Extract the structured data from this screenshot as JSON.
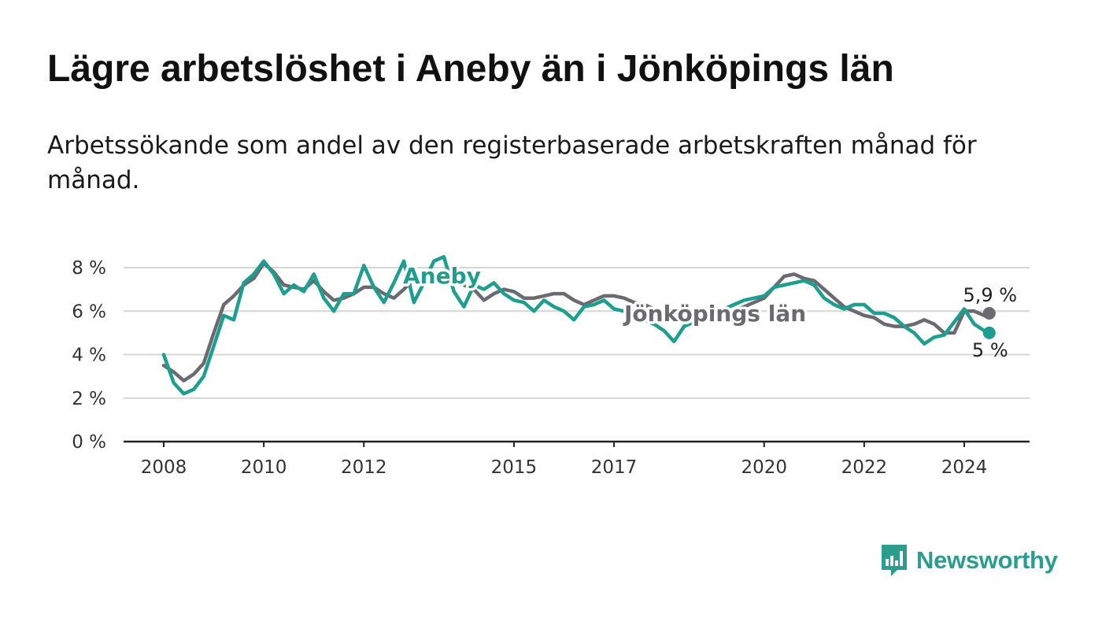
{
  "title": "Lägre arbetslöshet i Aneby än i Jönköpings län",
  "subtitle": "Arbetssökande som andel av den registerbaserade arbetskraften månad för månad.",
  "brand": {
    "name": "Newsworthy",
    "color": "#2a9d8f"
  },
  "chart_data": {
    "type": "line",
    "title": "Lägre arbetslöshet i Aneby än i Jönköpings län",
    "xlabel": "",
    "ylabel": "",
    "xlim": [
      2007.6,
      2025.3
    ],
    "ylim": [
      0,
      8
    ],
    "ytick_values": [
      0,
      2,
      4,
      6,
      8
    ],
    "ytick_labels": [
      "0 %",
      "2 %",
      "4 %",
      "6 %",
      "8 %"
    ],
    "xtick_values": [
      2008,
      2010,
      2012,
      2015,
      2017,
      2020,
      2022,
      2024
    ],
    "xtick_labels": [
      "2008",
      "2010",
      "2012",
      "2015",
      "2017",
      "2020",
      "2022",
      "2024"
    ],
    "grid": true,
    "series": [
      {
        "name": "Jönköpings län",
        "label": "Jönköpings län",
        "color": "#6b6a70",
        "end_label": "5,9 %",
        "end_value": 5.9,
        "x": [
          2008.0,
          2008.2,
          2008.4,
          2008.6,
          2008.8,
          2009.0,
          2009.2,
          2009.4,
          2009.6,
          2009.8,
          2010.0,
          2010.2,
          2010.4,
          2010.6,
          2010.8,
          2011.0,
          2011.2,
          2011.4,
          2011.6,
          2011.8,
          2012.0,
          2012.2,
          2012.4,
          2012.6,
          2012.8,
          2013.0,
          2013.2,
          2013.4,
          2013.6,
          2013.8,
          2014.0,
          2014.2,
          2014.4,
          2014.6,
          2014.8,
          2015.0,
          2015.2,
          2015.4,
          2015.6,
          2015.8,
          2016.0,
          2016.2,
          2016.4,
          2016.6,
          2016.8,
          2017.0,
          2017.2,
          2017.4,
          2017.6,
          2017.8,
          2018.0,
          2018.2,
          2018.4,
          2018.6,
          2018.8,
          2019.0,
          2019.2,
          2019.4,
          2019.6,
          2019.8,
          2020.0,
          2020.2,
          2020.4,
          2020.6,
          2020.8,
          2021.0,
          2021.2,
          2021.4,
          2021.6,
          2021.8,
          2022.0,
          2022.2,
          2022.4,
          2022.6,
          2022.8,
          2023.0,
          2023.2,
          2023.4,
          2023.6,
          2023.8,
          2024.0,
          2024.2,
          2024.4,
          2024.5
        ],
        "y": [
          3.5,
          3.2,
          2.8,
          3.1,
          3.6,
          5.0,
          6.3,
          6.7,
          7.2,
          7.5,
          8.2,
          7.8,
          7.2,
          7.1,
          7.0,
          7.4,
          6.9,
          6.5,
          6.6,
          6.8,
          7.1,
          7.1,
          6.8,
          6.6,
          7.0,
          7.5,
          7.6,
          7.6,
          7.5,
          7.4,
          7.2,
          7.0,
          6.5,
          6.8,
          7.0,
          6.9,
          6.6,
          6.6,
          6.7,
          6.8,
          6.8,
          6.5,
          6.3,
          6.5,
          6.7,
          6.7,
          6.6,
          6.4,
          6.3,
          6.1,
          5.9,
          5.7,
          5.6,
          5.7,
          5.8,
          5.8,
          5.9,
          6.0,
          6.2,
          6.4,
          6.6,
          7.1,
          7.6,
          7.7,
          7.5,
          7.4,
          7.0,
          6.6,
          6.2,
          6.0,
          5.8,
          5.7,
          5.4,
          5.3,
          5.3,
          5.4,
          5.6,
          5.4,
          5.0,
          5.0,
          6.0,
          6.0,
          5.8,
          5.9
        ]
      },
      {
        "name": "Aneby",
        "label": "Aneby",
        "color": "#1d9e8e",
        "end_label": "5 %",
        "end_value": 5.0,
        "x": [
          2008.0,
          2008.2,
          2008.4,
          2008.6,
          2008.8,
          2009.0,
          2009.2,
          2009.4,
          2009.6,
          2009.8,
          2010.0,
          2010.2,
          2010.4,
          2010.6,
          2010.8,
          2011.0,
          2011.2,
          2011.4,
          2011.6,
          2011.8,
          2012.0,
          2012.2,
          2012.4,
          2012.6,
          2012.8,
          2013.0,
          2013.2,
          2013.4,
          2013.6,
          2013.8,
          2014.0,
          2014.2,
          2014.4,
          2014.6,
          2014.8,
          2015.0,
          2015.2,
          2015.4,
          2015.6,
          2015.8,
          2016.0,
          2016.2,
          2016.4,
          2016.6,
          2016.8,
          2017.0,
          2017.2,
          2017.4,
          2017.6,
          2017.8,
          2018.0,
          2018.2,
          2018.4,
          2018.6,
          2018.8,
          2019.0,
          2019.2,
          2019.4,
          2019.6,
          2019.8,
          2020.0,
          2020.2,
          2020.4,
          2020.6,
          2020.8,
          2021.0,
          2021.2,
          2021.4,
          2021.6,
          2021.8,
          2022.0,
          2022.2,
          2022.4,
          2022.6,
          2022.8,
          2023.0,
          2023.2,
          2023.4,
          2023.6,
          2023.8,
          2024.0,
          2024.2,
          2024.4,
          2024.5
        ],
        "y": [
          4.0,
          2.7,
          2.2,
          2.4,
          3.0,
          4.4,
          5.8,
          5.6,
          7.3,
          7.7,
          8.3,
          7.7,
          6.8,
          7.2,
          6.9,
          7.7,
          6.6,
          6.0,
          6.8,
          6.8,
          8.1,
          7.1,
          6.4,
          7.3,
          8.3,
          6.4,
          7.3,
          8.3,
          8.5,
          6.9,
          6.2,
          7.2,
          7.0,
          7.3,
          6.8,
          6.5,
          6.4,
          6.0,
          6.5,
          6.2,
          6.0,
          5.6,
          6.2,
          6.3,
          6.5,
          6.1,
          6.0,
          5.8,
          5.6,
          5.4,
          5.1,
          4.6,
          5.3,
          5.5,
          5.7,
          5.9,
          6.1,
          6.3,
          6.5,
          6.6,
          6.7,
          7.1,
          7.2,
          7.3,
          7.4,
          7.2,
          6.6,
          6.3,
          6.1,
          6.3,
          6.3,
          5.9,
          5.9,
          5.7,
          5.3,
          5.0,
          4.5,
          4.8,
          4.9,
          5.5,
          6.1,
          5.4,
          5.1,
          5.0
        ]
      }
    ]
  }
}
